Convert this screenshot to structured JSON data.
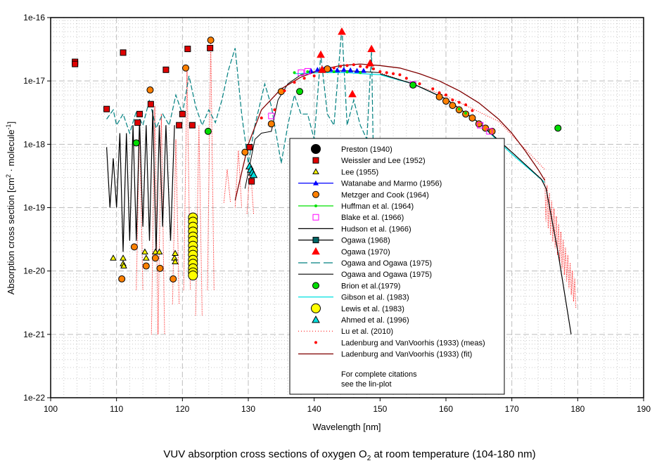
{
  "chart_data": {
    "type": "scatter",
    "title": "VUV  absorption cross sections of oxygen O",
    "title_sub": "2",
    "title_tail": " at room temperature (104-180 nm)",
    "xlabel": "Wavelength [nm]",
    "ylabel_main": "Absorption cross section [cm",
    "ylabel_sup1": "2",
    "ylabel_mid": " · molecule",
    "ylabel_sup2": "-1",
    "ylabel_end": "]",
    "xlim": [
      100,
      190
    ],
    "ylim": [
      1e-22,
      1e-16
    ],
    "yscale": "log",
    "grid": true,
    "legend_position": "center",
    "x_ticks": [
      "100",
      "110",
      "120",
      "130",
      "140",
      "150",
      "160",
      "170",
      "180",
      "190"
    ],
    "y_ticks": [
      "1e-16",
      "1e-17",
      "1e-18",
      "1e-19",
      "1e-20",
      "1e-21",
      "1e-22"
    ],
    "legend_note": [
      "For complete citations",
      "see the lin-plot"
    ],
    "series": [
      {
        "name": "Preston (1940)",
        "marker": "circle-big",
        "color": "#000000",
        "points": []
      },
      {
        "name": "Weissler and Lee (1952)",
        "marker": "square",
        "color": "#e00000",
        "points": [
          [
            103.7,
            2e-17
          ],
          [
            103.7,
            1.85e-17
          ],
          [
            108.5,
            3.6e-18
          ],
          [
            111,
            2.8e-17
          ],
          [
            113.2,
            2.2e-18
          ],
          [
            113.5,
            3e-18
          ],
          [
            115.2,
            4.3e-18
          ],
          [
            117.5,
            1.5e-17
          ],
          [
            119.5,
            2e-18
          ],
          [
            120,
            3e-18
          ],
          [
            120.8,
            3.2e-17
          ],
          [
            121.5,
            2e-18
          ],
          [
            124.2,
            3.3e-17
          ],
          [
            130.2,
            9e-19
          ],
          [
            130.5,
            2.6e-19
          ]
        ]
      },
      {
        "name": "Lee (1955)",
        "marker": "triangle-small",
        "color": "#ffff00",
        "points": [
          [
            109.5,
            1.6e-20
          ],
          [
            111,
            1.6e-20
          ],
          [
            111,
            1.3e-20
          ],
          [
            111.1,
            1.2e-20
          ],
          [
            114.3,
            2e-20
          ],
          [
            114.5,
            1.6e-20
          ],
          [
            115.9,
            2e-20
          ],
          [
            116.5,
            2e-20
          ],
          [
            118.8,
            1.6e-20
          ],
          [
            118.9,
            1.9e-20
          ],
          [
            118.9,
            1.4e-20
          ]
        ]
      },
      {
        "name": "Watanabe and Marmo (1956)",
        "marker": "triangle-line",
        "color": "#0000ff",
        "points": [
          [
            139.5,
            1.45e-17
          ],
          [
            140.5,
            1.5e-17
          ],
          [
            141.5,
            1.52e-17
          ],
          [
            142.5,
            1.5e-17
          ],
          [
            143.5,
            1.48e-17
          ],
          [
            144.5,
            1.5e-17
          ],
          [
            145.5,
            1.48e-17
          ],
          [
            146.5,
            1.45e-17
          ],
          [
            147.5,
            1.45e-17
          ]
        ]
      },
      {
        "name": "Metzger and Cook (1964)",
        "marker": "circle",
        "color": "#ff8000",
        "points": [
          [
            110.8,
            7.5e-21
          ],
          [
            112.7,
            2.4e-20
          ],
          [
            114.5,
            1.2e-20
          ],
          [
            115.1,
            7.2e-18
          ],
          [
            115.9,
            1.6e-20
          ],
          [
            116.6,
            1.1e-20
          ],
          [
            118.6,
            7.5e-21
          ],
          [
            120.5,
            1.6e-17
          ],
          [
            124.3,
            4.4e-17
          ],
          [
            129.5,
            7.5e-19
          ],
          [
            133.5,
            2.1e-18
          ],
          [
            135,
            6.8e-18
          ],
          [
            142,
            1.55e-17
          ],
          [
            159,
            5.6e-18
          ],
          [
            160,
            4.8e-18
          ],
          [
            161,
            4.1e-18
          ],
          [
            162,
            3.5e-18
          ],
          [
            163,
            3e-18
          ],
          [
            164,
            2.6e-18
          ],
          [
            165,
            2.1e-18
          ],
          [
            166,
            1.8e-18
          ],
          [
            167,
            1.6e-18
          ]
        ]
      },
      {
        "name": "Huffman et al. (1964)",
        "marker": "dot-line",
        "color": "#00e000",
        "points": [
          [
            137,
            1.35e-17
          ],
          [
            139,
            1.4e-17
          ],
          [
            141,
            1.42e-17
          ],
          [
            143,
            1.4e-17
          ],
          [
            145,
            1.38e-17
          ],
          [
            147,
            1.35e-17
          ],
          [
            155,
            9e-18
          ],
          [
            162,
            3.6e-18
          ],
          [
            163,
            3.1e-18
          ]
        ]
      },
      {
        "name": "Blake et al. (1966)",
        "marker": "square-open",
        "color": "#ff00ff",
        "points": [
          [
            133.5,
            2.8e-18
          ],
          [
            138,
            1.35e-17
          ],
          [
            139,
            1.42e-17
          ],
          [
            155,
            8.8e-18
          ],
          [
            165.2,
            2e-18
          ],
          [
            166.6,
            1.6e-18
          ]
        ]
      },
      {
        "name": "Hudson et al. (1966)",
        "marker": "line",
        "color": "#000000",
        "points": []
      },
      {
        "name": "Ogawa (1968)",
        "marker": "square-line",
        "color": "#006666",
        "points": []
      },
      {
        "name": "Ogawa (1970)",
        "marker": "triangle",
        "color": "#ff0000",
        "points": [
          [
            141,
            2.6e-17
          ],
          [
            141.2,
            1.5e-17
          ],
          [
            144.2,
            6e-17
          ],
          [
            145.8,
            6.2e-18
          ],
          [
            148.5,
            1.9e-17
          ],
          [
            148.7,
            3.2e-17
          ]
        ]
      },
      {
        "name": "Ogawa and Ogawa (1975)",
        "marker": "dash",
        "color": "#008080",
        "points": []
      },
      {
        "name": "Ogawa and Ogawa (1975)",
        "marker": "line",
        "color": "#000000",
        "points": []
      },
      {
        "name": "Brion et al.(1979)",
        "marker": "circle",
        "color": "#00dd00",
        "points": [
          [
            113,
            1.05e-18
          ],
          [
            123.9,
            1.6e-18
          ],
          [
            137.8,
            6.8e-18
          ],
          [
            155,
            8.6e-18
          ],
          [
            177,
            1.8e-18
          ]
        ]
      },
      {
        "name": "Gibson et al. (1983)",
        "marker": "line",
        "color": "#00e0e0",
        "points": []
      },
      {
        "name": "Lewis et al. (1983)",
        "marker": "circle-big",
        "color": "#ffff00",
        "points": [
          [
            121.6,
            7e-20
          ],
          [
            121.6,
            6e-20
          ],
          [
            121.6,
            5e-20
          ],
          [
            121.6,
            4.2e-20
          ],
          [
            121.6,
            3.5e-20
          ],
          [
            121.6,
            3e-20
          ],
          [
            121.6,
            2.5e-20
          ],
          [
            121.6,
            2.1e-20
          ],
          [
            121.6,
            1.8e-20
          ],
          [
            121.6,
            1.5e-20
          ],
          [
            121.6,
            1.3e-20
          ],
          [
            121.6,
            1.1e-20
          ],
          [
            121.6,
            9.5e-21
          ],
          [
            121.6,
            8.5e-21
          ]
        ]
      },
      {
        "name": "Ahmed et al. (1996)",
        "marker": "triangle",
        "color": "#00e0e0",
        "points": [
          [
            130.2,
            4.5e-19
          ],
          [
            130.4,
            4e-19
          ],
          [
            130.6,
            3.6e-19
          ],
          [
            130.8,
            3.3e-19
          ]
        ]
      },
      {
        "name": "Lu et al. (2010)",
        "marker": "dotted",
        "color": "#ff0000",
        "points": []
      },
      {
        "name": "Ladenburg and VanVoorhis (1933)  (meas)",
        "marker": "dot",
        "color": "#ff0000",
        "points": [
          [
            132,
            2.6e-18
          ],
          [
            134,
            3.5e-18
          ],
          [
            135.5,
            7e-18
          ],
          [
            137,
            9.5e-18
          ],
          [
            138.5,
            1.1e-17
          ],
          [
            140,
            1.2e-17
          ],
          [
            143,
            1.6e-17
          ],
          [
            144,
            1.7e-17
          ],
          [
            145,
            1.75e-17
          ],
          [
            146,
            1.8e-17
          ],
          [
            147,
            1.7e-17
          ],
          [
            148,
            1.65e-17
          ],
          [
            149,
            1.55e-17
          ],
          [
            150,
            1.4e-17
          ],
          [
            151,
            1.35e-17
          ],
          [
            152,
            1.3e-17
          ],
          [
            153,
            1.25e-17
          ],
          [
            154,
            1.1e-17
          ],
          [
            156,
            9e-18
          ],
          [
            158,
            7.5e-18
          ],
          [
            159,
            6.5e-18
          ],
          [
            160,
            6e-18
          ],
          [
            161,
            5e-18
          ],
          [
            162,
            4.6e-18
          ],
          [
            163,
            4.2e-18
          ],
          [
            164,
            3.4e-18
          ]
        ]
      },
      {
        "name": "Ladenburg and VanVoorhis (1933)  (fit)",
        "marker": "line",
        "color": "#800000",
        "points": []
      }
    ],
    "curves": {
      "hudson": [
        [
          108.5,
          9e-19
        ],
        [
          109,
          1e-19
        ],
        [
          109.5,
          6e-19
        ],
        [
          110,
          1e-19
        ],
        [
          110.5,
          1.5e-18
        ],
        [
          111,
          2e-20
        ],
        [
          111.5,
          1.5e-18
        ],
        [
          112,
          3e-20
        ],
        [
          112.5,
          2e-18
        ],
        [
          113,
          3e-20
        ],
        [
          113.5,
          2.5e-18
        ],
        [
          114,
          5e-20
        ],
        [
          114.5,
          2e-18
        ],
        [
          115,
          3e-20
        ],
        [
          115.5,
          3.5e-18
        ],
        [
          116,
          2e-20
        ],
        [
          116.5,
          2e-18
        ],
        [
          117,
          5e-20
        ],
        [
          117.5,
          2e-18
        ],
        [
          118.2,
          3e-20
        ],
        [
          118.8,
          2e-18
        ]
      ],
      "gibson": [
        [
          137,
          1.3e-17
        ],
        [
          141,
          1.35e-17
        ],
        [
          145,
          1.35e-17
        ],
        [
          150,
          1.25e-17
        ],
        [
          155,
          9e-18
        ],
        [
          160,
          5.2e-18
        ],
        [
          165,
          2.2e-18
        ],
        [
          170,
          7e-19
        ],
        [
          175,
          2.5e-19
        ]
      ],
      "ogawa_black": [
        [
          150,
          1.3e-17
        ],
        [
          155,
          9e-18
        ],
        [
          160,
          5.2e-18
        ],
        [
          165,
          2.2e-18
        ],
        [
          170,
          7.5e-19
        ],
        [
          174.5,
          2.8e-19
        ],
        [
          175.2,
          2e-19
        ],
        [
          177,
          2e-20
        ],
        [
          179,
          1e-21
        ]
      ],
      "ladenburg_fit": [
        [
          128,
          1.3e-19
        ],
        [
          130,
          1e-18
        ],
        [
          132,
          3.5e-18
        ],
        [
          135,
          7.5e-18
        ],
        [
          138,
          1.15e-17
        ],
        [
          141,
          1.5e-17
        ],
        [
          144,
          1.75e-17
        ],
        [
          147,
          1.85e-17
        ],
        [
          150,
          1.75e-17
        ],
        [
          153,
          1.6e-17
        ],
        [
          156,
          1.3e-17
        ],
        [
          159,
          1e-17
        ],
        [
          162,
          7e-18
        ],
        [
          165,
          4.5e-18
        ],
        [
          168,
          2.5e-18
        ],
        [
          170,
          1.5e-18
        ],
        [
          172,
          8e-19
        ],
        [
          174,
          4e-19
        ],
        [
          175,
          2.7e-19
        ]
      ],
      "hudson_upper": [
        [
          129.5,
          2e-19
        ],
        [
          131,
          1.2e-18
        ],
        [
          132,
          1.5e-18
        ],
        [
          133.5,
          1.6e-18
        ],
        [
          134.5,
          5e-18
        ],
        [
          136,
          9e-18
        ],
        [
          138,
          1.25e-17
        ],
        [
          140,
          1.4e-17
        ],
        [
          145,
          1.45e-17
        ],
        [
          150,
          1.35e-17
        ]
      ]
    }
  }
}
